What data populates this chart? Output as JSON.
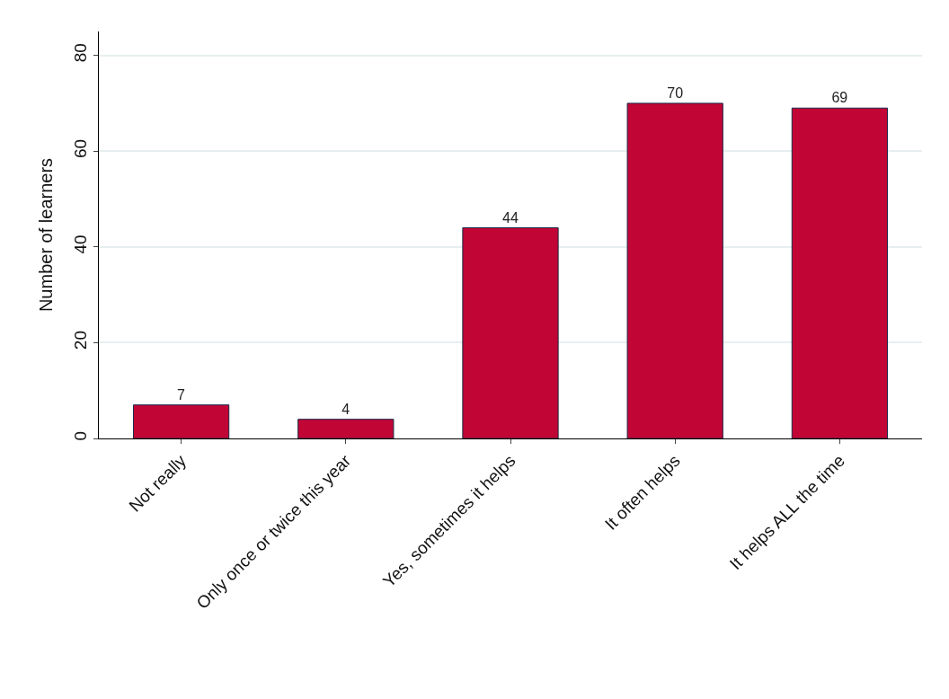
{
  "chart_data": {
    "type": "bar",
    "ylabel": "Number of learners",
    "categories": [
      "Not really",
      "Only once or twice this year",
      "Yes, sometimes it helps",
      "It often helps",
      "It helps ALL the time"
    ],
    "values": [
      7,
      4,
      44,
      70,
      69
    ],
    "color": "#c10534",
    "ylim": [
      0,
      85
    ],
    "yticks": [
      0,
      20,
      40,
      60,
      80
    ],
    "grid": "y",
    "data_labels": true
  }
}
